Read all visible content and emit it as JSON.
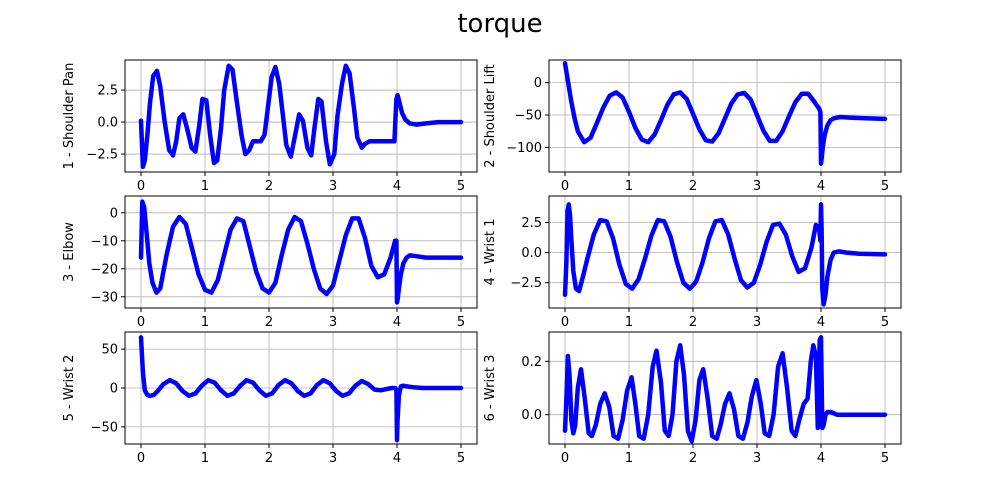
{
  "figure": {
    "title": "torque"
  },
  "colors": {
    "line": "#0000ff",
    "grid": "#b0b0b0",
    "axes": "#000000",
    "background": "#ffffff"
  },
  "chart_data": [
    {
      "type": "line",
      "ylabel": "1 - Shoulder Pan",
      "xlim": [
        -0.25,
        5.25
      ],
      "ylim": [
        -3.9,
        4.85
      ],
      "xticks": [
        0,
        1,
        2,
        3,
        4,
        5
      ],
      "yticks": [
        -2.5,
        0.0,
        2.5
      ],
      "ytick_labels": [
        "−2.5",
        "0.0",
        "2.5"
      ],
      "grid": true,
      "series": [
        {
          "x": [
            0,
            0.03,
            0.06,
            0.1,
            0.14,
            0.19,
            0.25,
            0.3,
            0.37,
            0.44,
            0.5,
            0.55,
            0.6,
            0.66,
            0.72,
            0.79,
            0.85,
            0.91,
            0.96,
            1.02,
            1.08,
            1.14,
            1.19,
            1.25,
            1.3,
            1.37,
            1.43,
            1.5,
            1.57,
            1.63,
            1.69,
            1.75,
            1.81,
            1.87,
            1.93,
            1.98,
            2.04,
            2.1,
            2.16,
            2.23,
            2.27,
            2.34,
            2.41,
            2.47,
            2.53,
            2.6,
            2.66,
            2.71,
            2.77,
            2.82,
            2.89,
            2.95,
            3.02,
            3.07,
            3.14,
            3.2,
            3.26,
            3.33,
            3.38,
            3.45,
            3.5,
            3.57,
            3.64,
            3.7,
            3.77,
            3.83,
            3.9,
            3.96,
            3.99,
            4.01,
            4.04,
            4.08,
            4.13,
            4.2,
            4.3,
            4.45,
            4.65,
            5.0
          ],
          "y": [
            0.1,
            -3.5,
            -3.0,
            -1.0,
            1.5,
            3.6,
            4.0,
            2.8,
            0.0,
            -2.2,
            -2.6,
            -1.5,
            0.3,
            0.6,
            -0.5,
            -2.0,
            -2.3,
            -0.3,
            1.8,
            1.7,
            -1.0,
            -3.2,
            -3.0,
            -0.5,
            2.5,
            4.4,
            4.1,
            1.5,
            -1.0,
            -2.5,
            -2.2,
            -1.5,
            -1.5,
            -1.5,
            -1.0,
            1.0,
            3.5,
            4.3,
            3.0,
            0.0,
            -1.8,
            -2.7,
            -1.0,
            0.6,
            0.1,
            -2.0,
            -2.6,
            -0.5,
            1.8,
            1.6,
            -1.5,
            -3.3,
            -2.5,
            0.5,
            3.0,
            4.4,
            3.8,
            1.0,
            -1.2,
            -2.0,
            -1.7,
            -1.5,
            -1.5,
            -1.5,
            -1.5,
            -1.5,
            -1.5,
            -1.5,
            1.8,
            2.1,
            1.5,
            0.7,
            0.2,
            -0.1,
            -0.2,
            -0.1,
            0.0,
            0.0
          ]
        }
      ]
    },
    {
      "type": "line",
      "ylabel": "2 - Shoulder Lift",
      "xlim": [
        -0.25,
        5.25
      ],
      "ylim": [
        -138,
        35
      ],
      "xticks": [
        0,
        1,
        2,
        3,
        4,
        5
      ],
      "yticks": [
        -100,
        -50,
        0
      ],
      "ytick_labels": [
        "−100",
        "−50",
        "0"
      ],
      "grid": true,
      "series": [
        {
          "x": [
            0,
            0.05,
            0.1,
            0.15,
            0.2,
            0.3,
            0.4,
            0.5,
            0.6,
            0.7,
            0.8,
            0.9,
            1.0,
            1.1,
            1.2,
            1.3,
            1.4,
            1.5,
            1.6,
            1.7,
            1.8,
            1.9,
            2.0,
            2.1,
            2.2,
            2.3,
            2.4,
            2.5,
            2.6,
            2.7,
            2.8,
            2.9,
            3.0,
            3.1,
            3.2,
            3.3,
            3.4,
            3.5,
            3.6,
            3.7,
            3.8,
            3.9,
            3.97,
            3.99,
            4.0,
            4.01,
            4.03,
            4.06,
            4.1,
            4.15,
            4.2,
            4.3,
            4.45,
            4.7,
            5.0
          ],
          "y": [
            30,
            0,
            -30,
            -55,
            -75,
            -92,
            -85,
            -62,
            -38,
            -20,
            -15,
            -23,
            -45,
            -70,
            -88,
            -92,
            -80,
            -58,
            -34,
            -18,
            -15,
            -25,
            -48,
            -72,
            -89,
            -91,
            -78,
            -55,
            -32,
            -18,
            -16,
            -26,
            -50,
            -74,
            -90,
            -90,
            -75,
            -52,
            -30,
            -17,
            -17,
            -30,
            -40,
            -45,
            -125,
            -118,
            -98,
            -80,
            -66,
            -58,
            -55,
            -53,
            -54,
            -55,
            -56
          ]
        }
      ]
    },
    {
      "type": "line",
      "ylabel": "3 - Elbow",
      "xlim": [
        -0.25,
        5.25
      ],
      "ylim": [
        -34,
        6
      ],
      "xticks": [
        0,
        1,
        2,
        3,
        4,
        5
      ],
      "yticks": [
        -30,
        -20,
        -10,
        0
      ],
      "ytick_labels": [
        "−30",
        "−20",
        "−10",
        "0"
      ],
      "grid": true,
      "series": [
        {
          "x": [
            0,
            0.02,
            0.05,
            0.09,
            0.13,
            0.18,
            0.24,
            0.3,
            0.4,
            0.5,
            0.6,
            0.7,
            0.8,
            0.9,
            1.0,
            1.1,
            1.2,
            1.3,
            1.4,
            1.5,
            1.6,
            1.7,
            1.8,
            1.9,
            2.0,
            2.1,
            2.2,
            2.3,
            2.4,
            2.5,
            2.6,
            2.7,
            2.8,
            2.9,
            3.0,
            3.1,
            3.2,
            3.3,
            3.4,
            3.5,
            3.6,
            3.7,
            3.8,
            3.9,
            3.97,
            3.99,
            4.0,
            4.01,
            4.03,
            4.06,
            4.1,
            4.15,
            4.2,
            4.3,
            4.45,
            4.7,
            5.0
          ],
          "y": [
            -16,
            4,
            2,
            -8,
            -18,
            -25,
            -28.5,
            -27,
            -15,
            -5,
            -1.5,
            -4,
            -13,
            -22,
            -27.5,
            -28.5,
            -24,
            -15,
            -6,
            -2,
            -3,
            -12,
            -21,
            -27,
            -28.5,
            -25,
            -15,
            -6,
            -1.5,
            -3,
            -11,
            -20,
            -27,
            -29,
            -26,
            -17,
            -8,
            -2,
            -2,
            -9,
            -19,
            -23,
            -22,
            -16,
            -10,
            -10,
            -32,
            -31,
            -27,
            -22,
            -18,
            -16,
            -15.2,
            -15.5,
            -16,
            -16,
            -16
          ]
        }
      ]
    },
    {
      "type": "line",
      "ylabel": "4 - Wrist 1",
      "xlim": [
        -0.25,
        5.25
      ],
      "ylim": [
        -4.6,
        4.7
      ],
      "xticks": [
        0,
        1,
        2,
        3,
        4,
        5
      ],
      "yticks": [
        -2.5,
        0.0,
        2.5
      ],
      "ytick_labels": [
        "−2.5",
        "0.0",
        "2.5"
      ],
      "grid": true,
      "series": [
        {
          "x": [
            0,
            0.02,
            0.04,
            0.06,
            0.08,
            0.1,
            0.13,
            0.17,
            0.22,
            0.28,
            0.35,
            0.45,
            0.55,
            0.65,
            0.75,
            0.85,
            0.95,
            1.05,
            1.15,
            1.25,
            1.35,
            1.45,
            1.55,
            1.65,
            1.75,
            1.85,
            1.95,
            2.05,
            2.15,
            2.25,
            2.35,
            2.45,
            2.55,
            2.65,
            2.75,
            2.85,
            2.95,
            3.05,
            3.15,
            3.25,
            3.35,
            3.45,
            3.55,
            3.65,
            3.75,
            3.85,
            3.92,
            3.97,
            3.99,
            4.0,
            4.01,
            4.02,
            4.04,
            4.07,
            4.1,
            4.15,
            4.2,
            4.28,
            4.4,
            4.6,
            5.0
          ],
          "y": [
            -3.5,
            -1,
            3.5,
            4.0,
            3.0,
            1.0,
            -1.5,
            -3.0,
            -3.2,
            -2.0,
            -0.5,
            1.5,
            2.7,
            2.6,
            1.2,
            -1.0,
            -2.6,
            -3.0,
            -2.2,
            -0.5,
            1.4,
            2.7,
            2.6,
            1.3,
            -0.8,
            -2.5,
            -3.0,
            -2.4,
            -0.8,
            1.2,
            2.6,
            2.7,
            1.5,
            -0.5,
            -2.3,
            -2.9,
            -2.5,
            -1.0,
            0.9,
            2.3,
            2.4,
            1.5,
            -0.3,
            -1.6,
            -1.3,
            0.4,
            2.3,
            2.0,
            1.0,
            4.0,
            2.0,
            -3.0,
            -4.3,
            -3.5,
            -2.0,
            -0.6,
            0.0,
            0.1,
            0.0,
            -0.1,
            -0.15
          ]
        }
      ]
    },
    {
      "type": "line",
      "ylabel": "5 - Wrist 2",
      "xlim": [
        -0.25,
        5.25
      ],
      "ylim": [
        -72,
        72
      ],
      "xticks": [
        0,
        1,
        2,
        3,
        4,
        5
      ],
      "yticks": [
        -50,
        0,
        50
      ],
      "ytick_labels": [
        "−50",
        "0",
        "50"
      ],
      "grid": true,
      "series": [
        {
          "x": [
            0,
            0.03,
            0.06,
            0.1,
            0.14,
            0.2,
            0.27,
            0.35,
            0.45,
            0.55,
            0.65,
            0.75,
            0.85,
            0.95,
            1.05,
            1.15,
            1.25,
            1.35,
            1.45,
            1.55,
            1.65,
            1.75,
            1.85,
            1.95,
            2.05,
            2.15,
            2.25,
            2.35,
            2.45,
            2.55,
            2.65,
            2.75,
            2.85,
            2.95,
            3.05,
            3.15,
            3.25,
            3.35,
            3.45,
            3.55,
            3.65,
            3.75,
            3.85,
            3.92,
            3.97,
            3.99,
            4.0,
            4.01,
            4.03,
            4.06,
            4.1,
            4.15,
            4.25,
            4.4,
            4.6,
            5.0
          ],
          "y": [
            65,
            20,
            -3,
            -9,
            -10,
            -9,
            -3,
            5,
            10,
            6,
            -4,
            -10,
            -7,
            3,
            10,
            7,
            -3,
            -10,
            -7,
            3,
            10,
            7,
            -3,
            -10,
            -7,
            4,
            10,
            6,
            -4,
            -10,
            -7,
            4,
            10,
            6,
            -4,
            -10,
            -7,
            3,
            9,
            5,
            -2,
            -3,
            -1,
            0,
            0,
            -2,
            -67,
            -40,
            -10,
            2,
            3,
            2,
            1,
            0,
            0,
            0
          ]
        }
      ]
    },
    {
      "type": "line",
      "ylabel": "6 - Wrist 3",
      "xlim": [
        -0.25,
        5.25
      ],
      "ylim": [
        -0.11,
        0.31
      ],
      "xticks": [
        0,
        1,
        2,
        3,
        4,
        5
      ],
      "yticks": [
        0.0,
        0.2
      ],
      "ytick_labels": [
        "0.0",
        "0.2"
      ],
      "grid": true,
      "series": [
        {
          "x": [
            0,
            0.02,
            0.045,
            0.07,
            0.1,
            0.13,
            0.16,
            0.2,
            0.25,
            0.31,
            0.37,
            0.42,
            0.48,
            0.55,
            0.62,
            0.69,
            0.76,
            0.83,
            0.9,
            0.97,
            1.04,
            1.1,
            1.16,
            1.23,
            1.3,
            1.37,
            1.43,
            1.5,
            1.56,
            1.62,
            1.68,
            1.74,
            1.8,
            1.86,
            1.92,
            1.98,
            2.04,
            2.1,
            2.16,
            2.23,
            2.3,
            2.37,
            2.43,
            2.5,
            2.57,
            2.64,
            2.71,
            2.78,
            2.85,
            2.92,
            2.99,
            3.06,
            3.12,
            3.19,
            3.26,
            3.33,
            3.4,
            3.47,
            3.54,
            3.6,
            3.66,
            3.73,
            3.79,
            3.84,
            3.88,
            3.92,
            3.95,
            3.98,
            4.0,
            4.02,
            4.04,
            4.07,
            4.1,
            4.15,
            4.25,
            4.4,
            4.6,
            5.0
          ],
          "y": [
            -0.06,
            0.05,
            0.22,
            0.15,
            -0.02,
            -0.07,
            -0.04,
            0.1,
            0.17,
            0.06,
            -0.07,
            -0.08,
            -0.04,
            0.04,
            0.08,
            0.03,
            -0.08,
            -0.09,
            -0.02,
            0.09,
            0.14,
            0.04,
            -0.08,
            -0.09,
            0.0,
            0.18,
            0.24,
            0.12,
            -0.06,
            -0.08,
            0.0,
            0.2,
            0.26,
            0.15,
            -0.06,
            -0.1,
            -0.02,
            0.13,
            0.17,
            0.06,
            -0.08,
            -0.09,
            -0.04,
            0.04,
            0.08,
            0.02,
            -0.08,
            -0.09,
            -0.03,
            0.07,
            0.13,
            0.04,
            -0.07,
            -0.08,
            0.0,
            0.18,
            0.23,
            0.1,
            -0.06,
            -0.08,
            -0.02,
            0.04,
            0.06,
            0.2,
            0.26,
            0.22,
            -0.05,
            0.28,
            0.29,
            -0.05,
            -0.04,
            0.0,
            0.01,
            0.01,
            0.0,
            0.0,
            0.0,
            0.0
          ]
        }
      ]
    }
  ]
}
